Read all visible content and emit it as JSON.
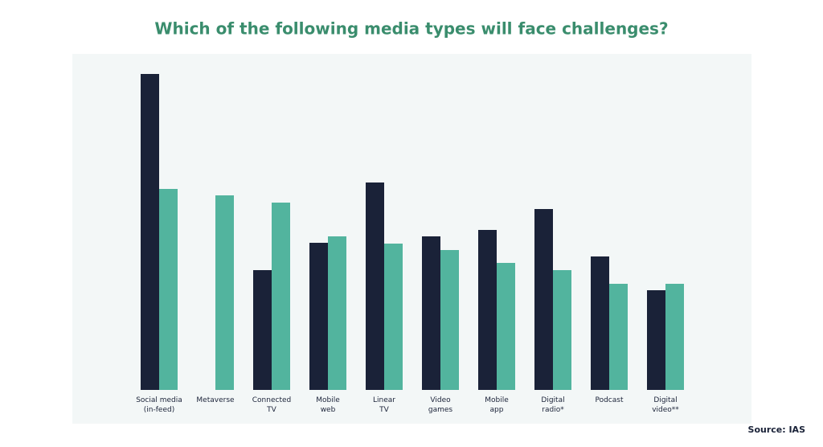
{
  "chart_data": {
    "type": "bar",
    "title": "Which of the following media types will face challenges?",
    "source": "Source: IAS",
    "categories": [
      [
        "Social media",
        "(in-feed)"
      ],
      [
        "Metaverse"
      ],
      [
        "Connected",
        "TV"
      ],
      [
        "Mobile",
        "web"
      ],
      [
        "Linear",
        "TV"
      ],
      [
        "Video",
        "games"
      ],
      [
        "Mobile",
        "app"
      ],
      [
        "Digital",
        "radio*"
      ],
      [
        "Podcast"
      ],
      [
        "Digital",
        "video**"
      ]
    ],
    "series": [
      {
        "color": "#1a2238",
        "values": [
          393,
          null,
          149,
          183,
          258,
          191,
          199,
          225,
          166,
          124
        ]
      },
      {
        "color": "#52b49e",
        "values": [
          250,
          242,
          233,
          191,
          182,
          174,
          158,
          149,
          132,
          132
        ]
      }
    ],
    "ylim": [
      0,
      420
    ]
  }
}
